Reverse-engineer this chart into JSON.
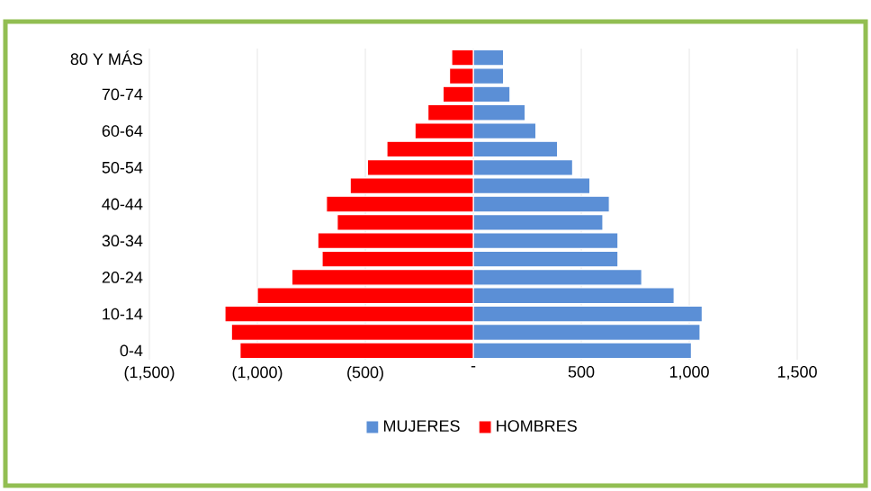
{
  "chart_data": {
    "type": "bar",
    "orientation": "horizontal",
    "categories": [
      "80 Y MÁS",
      null,
      "70-74",
      null,
      "60-64",
      null,
      "50-54",
      null,
      "40-44",
      null,
      "30-34",
      null,
      "20-24",
      null,
      "10-14",
      null,
      "0-4"
    ],
    "series": [
      {
        "name": "MUJERES",
        "color": "#5b8fd6",
        "values": [
          140,
          140,
          170,
          240,
          290,
          390,
          460,
          540,
          630,
          600,
          670,
          670,
          780,
          930,
          1060,
          1050,
          1010
        ]
      },
      {
        "name": "HOMBRES",
        "color": "#ff0000",
        "values": [
          -100,
          -110,
          -140,
          -210,
          -270,
          -400,
          -490,
          -570,
          -680,
          -630,
          -720,
          -700,
          -840,
          -1000,
          -1150,
          -1120,
          -1080
        ]
      }
    ],
    "xlim": [
      -1500,
      1500
    ],
    "xticks": [
      {
        "value": -1500,
        "label": "(1,500)"
      },
      {
        "value": -1000,
        "label": "(1,000)"
      },
      {
        "value": -500,
        "label": "(500)"
      },
      {
        "value": 0,
        "label": "-"
      },
      {
        "value": 500,
        "label": "500"
      },
      {
        "value": 1000,
        "label": "1,000"
      },
      {
        "value": 1500,
        "label": "1,500"
      }
    ],
    "stacked": true,
    "grid": "x",
    "legend": "bottom"
  }
}
